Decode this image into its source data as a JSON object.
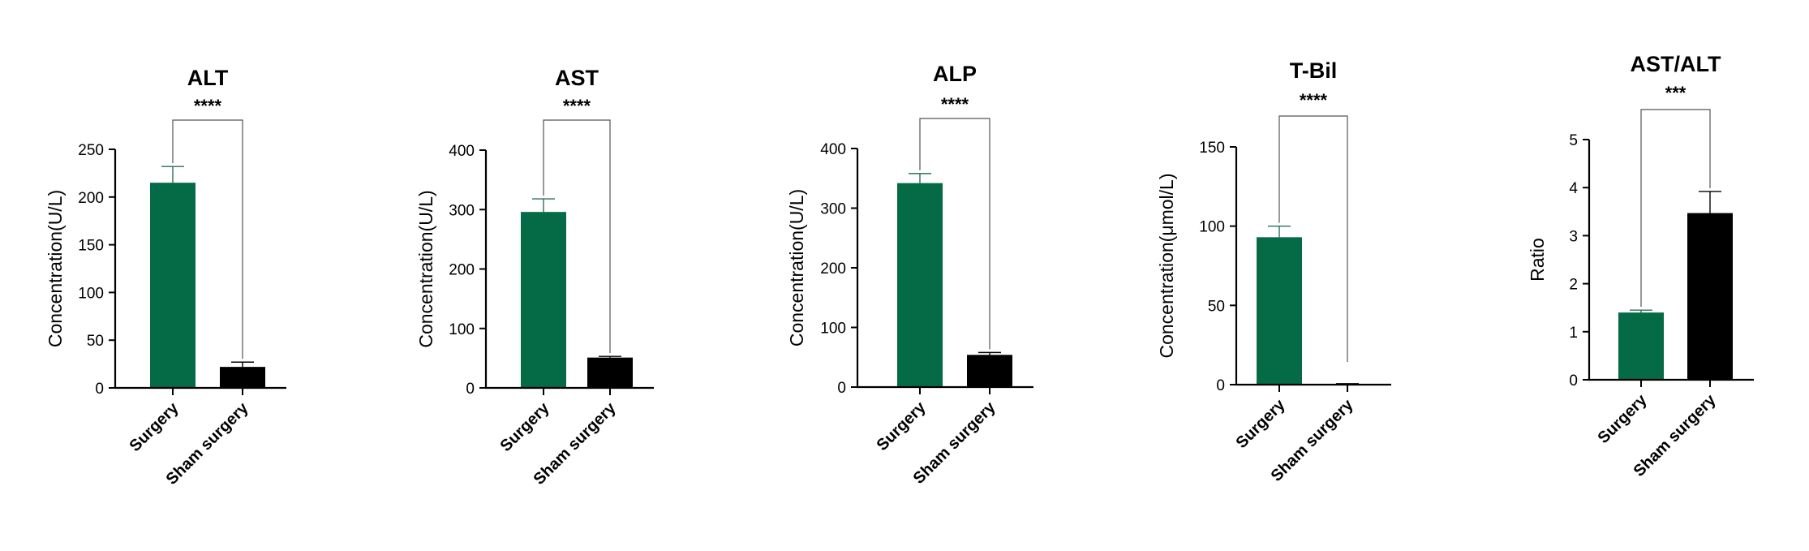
{
  "colors": {
    "surgery": "#046b46",
    "sham": "#000000",
    "axis": "#000000"
  },
  "chart_data": [
    {
      "type": "bar",
      "title": "ALT",
      "significance": "****",
      "ylabel": "Concentration(U/L)",
      "categories": [
        "Surgery",
        "Sham surgery"
      ],
      "values": [
        215,
        22
      ],
      "errors": [
        17,
        5
      ],
      "ylim": [
        0,
        250
      ],
      "yticks": [
        "0",
        "50",
        "100",
        "150",
        "200",
        "250"
      ]
    },
    {
      "type": "bar",
      "title": "AST",
      "significance": "****",
      "ylabel": "Concentration(U/L)",
      "categories": [
        "Surgery",
        "Sham surgery"
      ],
      "values": [
        296,
        51
      ],
      "errors": [
        22,
        2
      ],
      "ylim": [
        0,
        400
      ],
      "yticks": [
        "0",
        "100",
        "200",
        "300",
        "400"
      ]
    },
    {
      "type": "bar",
      "title": "ALP",
      "significance": "****",
      "ylabel": "Concentration(U/L)",
      "categories": [
        "Surgery",
        "Sham surgery"
      ],
      "values": [
        342,
        54
      ],
      "errors": [
        16,
        4
      ],
      "ylim": [
        0,
        400
      ],
      "yticks": [
        "0",
        "100",
        "200",
        "300",
        "400"
      ]
    },
    {
      "type": "bar",
      "title": "T-Bil",
      "significance": "****",
      "ylabel": "Concentration(μmol/L)",
      "categories": [
        "Surgery",
        "Sham surgery"
      ],
      "values": [
        93,
        0.5
      ],
      "errors": [
        7,
        0.1
      ],
      "ylim": [
        0,
        150
      ],
      "yticks": [
        "0",
        "50",
        "100",
        "150"
      ]
    },
    {
      "type": "bar",
      "title": "AST/ALT",
      "significance": "***",
      "ylabel": "Ratio",
      "categories": [
        "Surgery",
        "Sham surgery"
      ],
      "values": [
        1.4,
        3.47
      ],
      "errors": [
        0.05,
        0.45
      ],
      "ylim": [
        0,
        5
      ],
      "yticks": [
        "0",
        "1",
        "2",
        "3",
        "4",
        "5"
      ]
    }
  ]
}
